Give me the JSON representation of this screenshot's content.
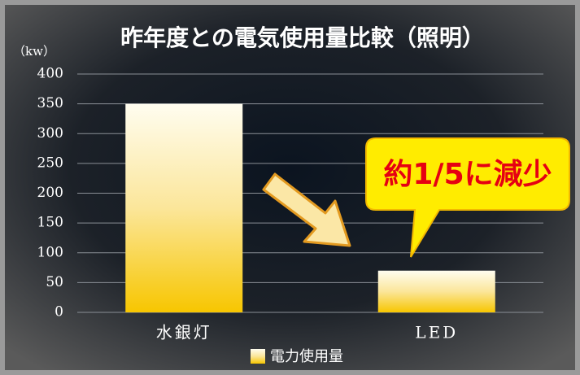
{
  "chart_data": {
    "type": "bar",
    "title": "昨年度との電気使用量比較（照明）",
    "y_label": "（kw）",
    "categories": [
      "水銀灯",
      "LED"
    ],
    "series": [
      {
        "name": "電力使用量",
        "color": "#f7c600",
        "values": [
          350,
          70
        ]
      }
    ],
    "ylim": [
      0,
      400
    ],
    "yticks": [
      0,
      50,
      100,
      150,
      200,
      250,
      300,
      350,
      400
    ],
    "grid": true,
    "annotation": "約1/5に減少"
  }
}
